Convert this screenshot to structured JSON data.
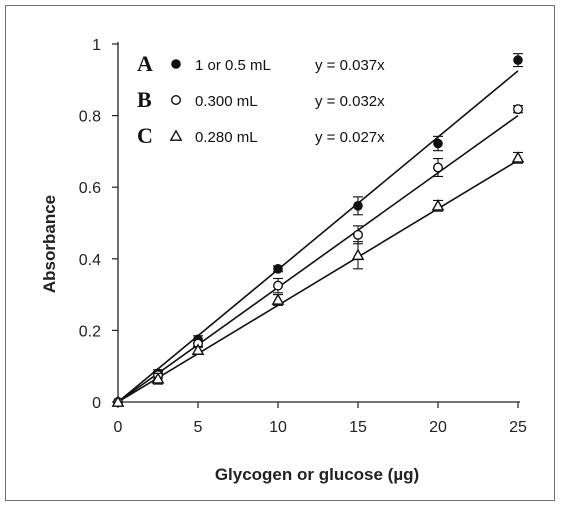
{
  "chart_data": {
    "type": "scatter",
    "xlabel": "Glycogen or glucose (µg)",
    "ylabel": "Absorbance",
    "xlim": [
      0,
      25
    ],
    "ylim": [
      0,
      1
    ],
    "xticks": [
      "0",
      "5",
      "10",
      "15",
      "20",
      "25"
    ],
    "yticks": [
      "0",
      "0.2",
      "0.4",
      "0.6",
      "0.8",
      "1"
    ],
    "grid": false,
    "legend_position": "top-left",
    "series": [
      {
        "letter": "A",
        "name": "1 or 0.5 mL",
        "equation": "y = 0.037x",
        "slope": 0.037,
        "marker": "filled-circle",
        "x": [
          0,
          2.5,
          5,
          10,
          15,
          20,
          25
        ],
        "y": [
          0,
          0.08,
          0.175,
          0.372,
          0.548,
          0.722,
          0.955
        ],
        "err": [
          0,
          0.01,
          0.01,
          0.008,
          0.025,
          0.02,
          0.018
        ]
      },
      {
        "letter": "B",
        "name": "0.300 mL",
        "equation": "y = 0.032x",
        "slope": 0.032,
        "marker": "open-circle",
        "x": [
          0,
          2.5,
          5,
          10,
          15,
          20,
          25
        ],
        "y": [
          0,
          0.075,
          0.163,
          0.325,
          0.467,
          0.655,
          0.818
        ],
        "err": [
          0,
          0.01,
          0.01,
          0.02,
          0.025,
          0.025,
          0.01
        ]
      },
      {
        "letter": "C",
        "name": "0.280 mL",
        "equation": "y = 0.027x",
        "slope": 0.027,
        "marker": "open-triangle",
        "x": [
          0,
          2.5,
          5,
          10,
          15,
          20,
          25
        ],
        "y": [
          0,
          0.065,
          0.145,
          0.285,
          0.41,
          0.548,
          0.682
        ],
        "err": [
          0,
          0.015,
          0.01,
          0.015,
          0.038,
          0.015,
          0.015
        ]
      }
    ]
  }
}
